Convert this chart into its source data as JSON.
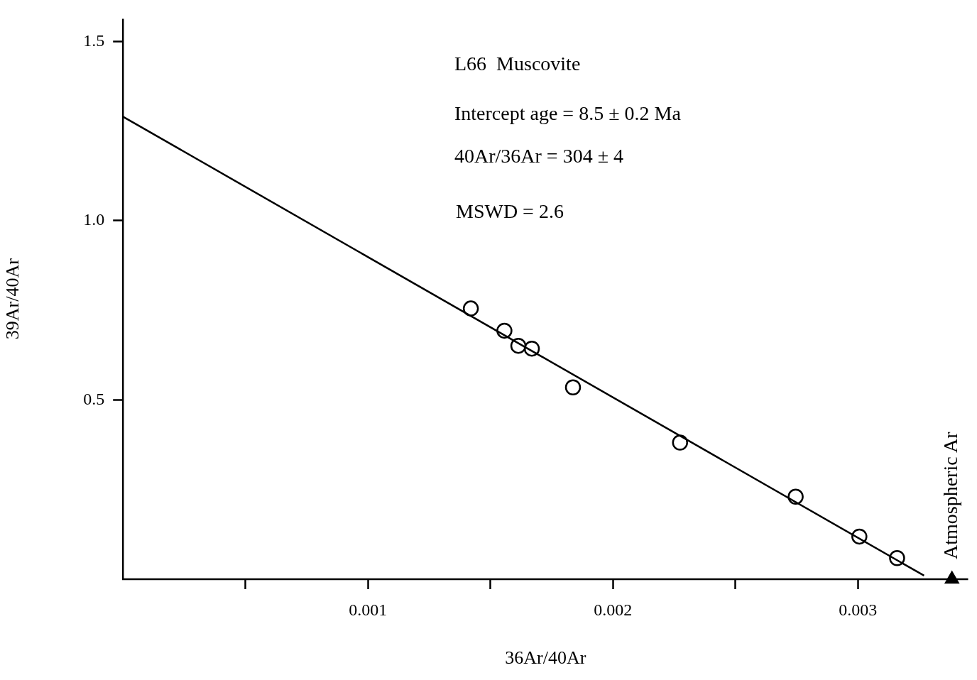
{
  "chart_data": {
    "type": "scatter",
    "xlabel": "36Ar/40Ar",
    "ylabel": "39Ar/40Ar",
    "xlim": [
      0,
      0.00345
    ],
    "ylim": [
      0,
      1.563
    ],
    "xticks": [
      {
        "value": 0.0005,
        "label": null
      },
      0.001,
      {
        "value": 0.0015,
        "label": null
      },
      0.002,
      {
        "value": 0.0025,
        "label": null
      },
      0.003
    ],
    "yticks": [
      {
        "value": 0.5,
        "label": "0.5"
      },
      {
        "value": 1.0,
        "label": "1.0"
      },
      {
        "value": 1.5,
        "label": "1.5"
      }
    ],
    "grid": false,
    "legend": false,
    "marker": "circle",
    "series": [
      {
        "type": "scatter",
        "color": "#000000",
        "x": [
          0.00142,
          0.001557,
          0.001614,
          0.001669,
          0.001837,
          0.002274,
          0.002746,
          0.003006,
          0.00316
        ],
        "values": [
          0.755,
          0.693,
          0.651,
          0.643,
          0.535,
          0.381,
          0.23,
          0.119,
          0.059
        ]
      },
      {
        "type": "line",
        "color": "#000000",
        "marker": "none",
        "x": [
          0,
          0.00327
        ],
        "values": [
          1.29,
          0.01
        ]
      },
      {
        "type": "scatter",
        "color": "#000000",
        "marker": "triangle",
        "x": [
          0.003384
        ],
        "values": [
          0
        ]
      }
    ],
    "annotations": [
      "L66  Muscovite",
      "Intercept age = 8.5 ± 0.2 Ma",
      "40Ar/36Ar = 304 ± 4",
      "MSWD = 2.6",
      {
        "text": "Atmospheric Ar",
        "x": 0.003384,
        "y": 0
      }
    ]
  }
}
